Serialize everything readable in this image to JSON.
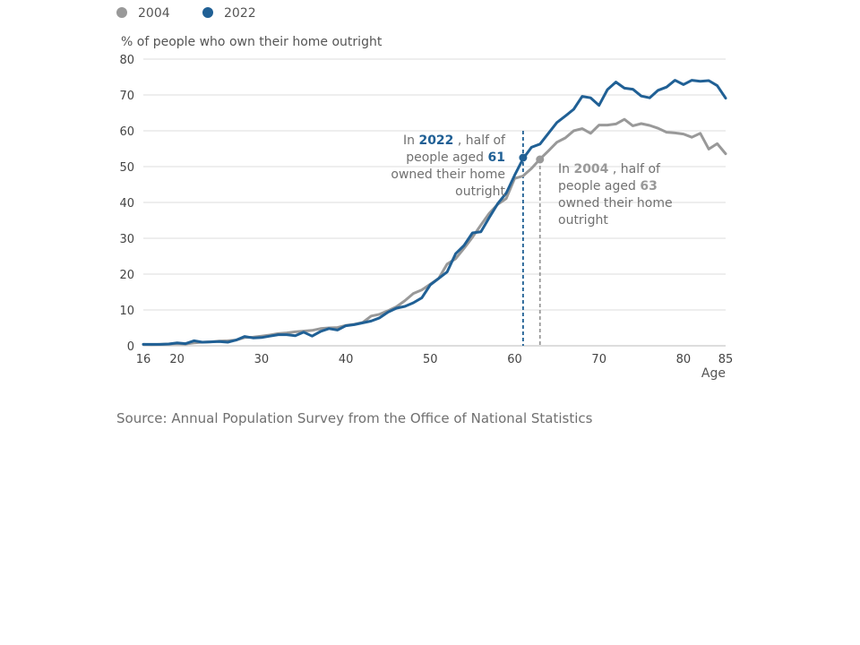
{
  "chart_data": {
    "type": "line",
    "ylabel": "% of people who own their home outright",
    "xlabel": "Age",
    "xlim": [
      16,
      85
    ],
    "ylim": [
      0,
      80
    ],
    "x_ticks": [
      16,
      20,
      30,
      40,
      50,
      60,
      70,
      80,
      85
    ],
    "y_ticks": [
      0,
      10,
      20,
      30,
      40,
      50,
      60,
      70,
      80
    ],
    "grid": true,
    "legend_placement": "top-left",
    "x": [
      16,
      17,
      18,
      19,
      20,
      21,
      22,
      23,
      24,
      25,
      26,
      27,
      28,
      29,
      30,
      31,
      32,
      33,
      34,
      35,
      36,
      37,
      38,
      39,
      40,
      41,
      42,
      43,
      44,
      45,
      46,
      47,
      48,
      49,
      50,
      51,
      52,
      53,
      54,
      55,
      56,
      57,
      58,
      59,
      60,
      61,
      62,
      63,
      64,
      65,
      66,
      67,
      68,
      69,
      70,
      71,
      72,
      73,
      74,
      75,
      76,
      77,
      78,
      79,
      80,
      81,
      82,
      83,
      84,
      85
    ],
    "series": [
      {
        "name": "2004",
        "color": "#999999",
        "values": [
          0.4,
          0.3,
          0.4,
          0.5,
          0.6,
          0.5,
          0.8,
          1.0,
          1.1,
          1.3,
          1.4,
          1.6,
          2.3,
          2.4,
          2.7,
          3.0,
          3.4,
          3.6,
          3.9,
          4.1,
          4.3,
          4.8,
          5.0,
          5.1,
          5.7,
          6.0,
          6.5,
          8.3,
          8.8,
          9.8,
          10.9,
          12.6,
          14.6,
          15.6,
          17.2,
          18.8,
          22.8,
          24.3,
          27.2,
          30.3,
          33.7,
          37.0,
          39.5,
          41.1,
          46.7,
          47.4,
          49.5,
          52.1,
          54.4,
          56.8,
          58.0,
          60.0,
          60.6,
          59.3,
          61.6,
          61.6,
          61.9,
          63.2,
          61.4,
          62.0,
          61.5,
          60.7,
          59.6,
          59.4,
          59.1,
          58.2,
          59.3,
          54.9,
          56.4,
          53.6
        ]
      },
      {
        "name": "2022",
        "color": "#206095",
        "values": [
          0.4,
          0.4,
          0.4,
          0.5,
          0.8,
          0.6,
          1.4,
          1.0,
          1.1,
          1.2,
          1.0,
          1.6,
          2.6,
          2.2,
          2.3,
          2.7,
          3.1,
          3.1,
          2.8,
          3.8,
          2.7,
          4.0,
          4.8,
          4.4,
          5.6,
          5.9,
          6.4,
          6.9,
          7.8,
          9.4,
          10.5,
          11.0,
          12.0,
          13.4,
          17.0,
          18.8,
          20.6,
          25.7,
          28.0,
          31.5,
          31.8,
          35.8,
          39.7,
          42.6,
          47.6,
          52.2,
          55.4,
          56.3,
          59.3,
          62.3,
          64.1,
          66.0,
          69.6,
          69.2,
          67.1,
          71.5,
          73.6,
          71.9,
          71.6,
          69.7,
          69.2,
          71.3,
          72.2,
          74.1,
          72.9,
          74.1,
          73.8,
          74.0,
          72.6,
          69.1
        ]
      }
    ],
    "annotations": [
      {
        "series": "2022",
        "age": 61,
        "value": 52.5,
        "line1_pre": "In ",
        "line1_bold": "2022",
        "line1_post": " , half of",
        "line2_pre": "people aged ",
        "line2_bold": "61",
        "line3": "owned their home",
        "line4": "outright"
      },
      {
        "series": "2004",
        "age": 63,
        "value": 52.0,
        "line1_pre": "In ",
        "line1_bold": "2004",
        "line1_post": " , half of",
        "line2_pre": "people aged ",
        "line2_bold": "63",
        "line3": "owned their home",
        "line4": "outright"
      }
    ]
  },
  "source": "Source: Annual Population Survey from the Office of National Statistics"
}
